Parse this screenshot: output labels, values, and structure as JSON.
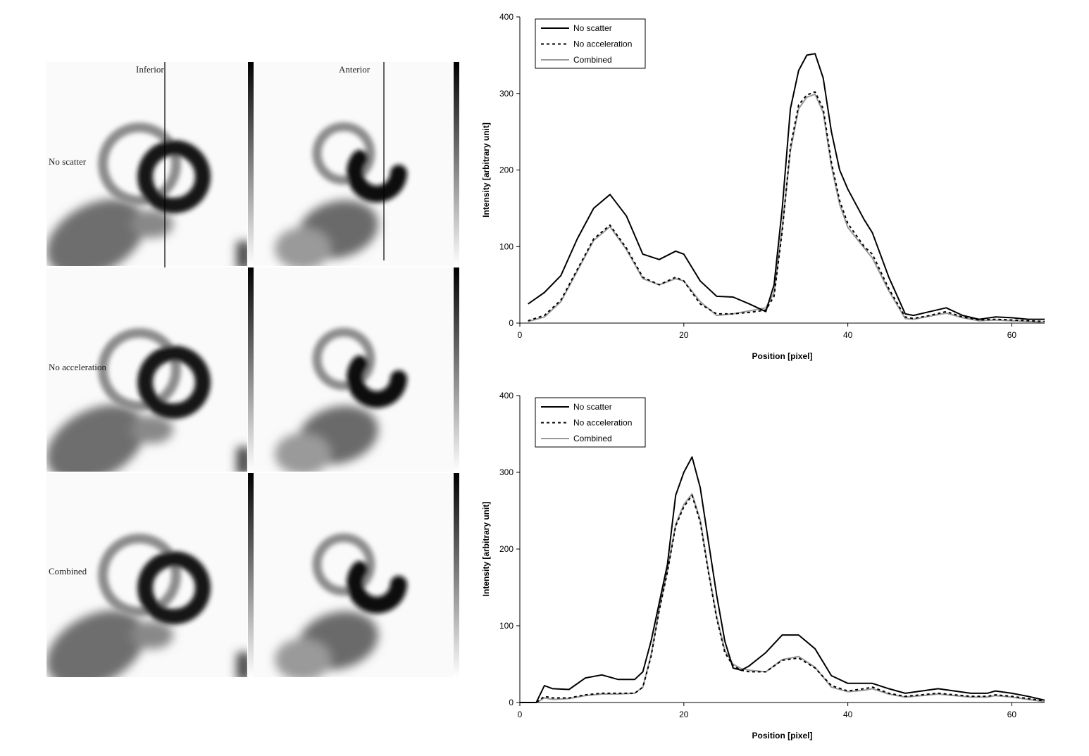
{
  "panel_labels": {
    "columns": [
      "Inferior",
      "Anterior"
    ],
    "rows": [
      "No scatter",
      "No acceleration",
      "Combined"
    ]
  },
  "colors": {
    "no_scatter": "#000000",
    "no_acceleration": "#000000",
    "combined": "#999999"
  },
  "chart_data": [
    {
      "type": "line",
      "xlabel": "Position [pixel]",
      "ylabel": "Intensity [arbitrary unit]",
      "xlim": [
        0,
        64
      ],
      "ylim": [
        0,
        400
      ],
      "xticks": [
        0,
        20,
        40,
        60
      ],
      "yticks": [
        0,
        100,
        200,
        300,
        400
      ],
      "grid": false,
      "legend_position": "top-left",
      "series": [
        {
          "name": "No scatter",
          "style": "solid",
          "x": [
            1,
            3,
            5,
            7,
            9,
            11,
            13,
            15,
            17,
            19,
            20,
            22,
            24,
            26,
            28,
            30,
            31,
            32,
            33,
            34,
            35,
            36,
            37,
            38,
            39,
            40,
            42,
            43,
            45,
            47,
            48,
            50,
            52,
            54,
            56,
            58,
            60,
            62,
            64
          ],
          "y": [
            25,
            40,
            62,
            110,
            150,
            168,
            140,
            90,
            83,
            94,
            90,
            55,
            35,
            34,
            25,
            15,
            50,
            150,
            280,
            330,
            350,
            352,
            320,
            250,
            200,
            175,
            135,
            118,
            60,
            12,
            10,
            15,
            20,
            10,
            5,
            8,
            7,
            5,
            5
          ]
        },
        {
          "name": "No acceleration",
          "style": "dashed",
          "x": [
            1,
            3,
            5,
            7,
            9,
            11,
            13,
            15,
            17,
            19,
            20,
            22,
            24,
            26,
            28,
            30,
            31,
            32,
            33,
            34,
            35,
            36,
            37,
            38,
            39,
            40,
            42,
            43,
            45,
            47,
            48,
            50,
            52,
            54,
            56,
            58,
            60,
            62,
            64
          ],
          "y": [
            3,
            10,
            30,
            70,
            110,
            128,
            98,
            60,
            50,
            60,
            55,
            25,
            12,
            12,
            14,
            17,
            35,
            120,
            230,
            285,
            298,
            302,
            280,
            210,
            160,
            130,
            100,
            90,
            45,
            8,
            6,
            10,
            15,
            8,
            4,
            5,
            4,
            3,
            2
          ]
        },
        {
          "name": "Combined",
          "style": "solid",
          "x": [
            1,
            3,
            5,
            7,
            9,
            11,
            13,
            15,
            17,
            19,
            20,
            22,
            24,
            26,
            28,
            30,
            31,
            32,
            33,
            34,
            35,
            36,
            37,
            38,
            39,
            40,
            42,
            43,
            45,
            47,
            48,
            50,
            52,
            54,
            56,
            58,
            60,
            62,
            64
          ],
          "y": [
            2,
            8,
            28,
            68,
            108,
            126,
            96,
            58,
            50,
            58,
            55,
            28,
            10,
            12,
            16,
            20,
            40,
            125,
            225,
            280,
            295,
            299,
            275,
            205,
            155,
            125,
            98,
            85,
            42,
            6,
            5,
            9,
            13,
            7,
            3,
            4,
            3,
            2,
            1
          ]
        }
      ]
    },
    {
      "type": "line",
      "xlabel": "Position [pixel]",
      "ylabel": "Intensity [arbitrary unit]",
      "xlim": [
        0,
        64
      ],
      "ylim": [
        0,
        400
      ],
      "xticks": [
        0,
        20,
        40,
        60
      ],
      "yticks": [
        0,
        100,
        200,
        300,
        400
      ],
      "grid": false,
      "legend_position": "top-left",
      "series": [
        {
          "name": "No scatter",
          "style": "solid",
          "x": [
            0,
            2,
            3,
            4,
            6,
            8,
            10,
            12,
            14,
            15,
            16,
            17,
            18,
            19,
            20,
            21,
            22,
            23,
            24,
            25,
            26,
            27,
            28,
            30,
            32,
            34,
            36,
            38,
            40,
            42,
            43,
            45,
            47,
            49,
            51,
            53,
            55,
            57,
            58,
            60,
            62,
            64
          ],
          "y": [
            0,
            0,
            22,
            18,
            17,
            32,
            36,
            30,
            30,
            40,
            80,
            130,
            180,
            270,
            300,
            320,
            280,
            210,
            140,
            80,
            45,
            42,
            48,
            65,
            88,
            88,
            70,
            35,
            25,
            25,
            25,
            18,
            12,
            15,
            18,
            15,
            12,
            12,
            15,
            12,
            8,
            3
          ]
        },
        {
          "name": "No acceleration",
          "style": "dashed",
          "x": [
            0,
            2,
            3,
            4,
            6,
            8,
            10,
            12,
            14,
            15,
            16,
            17,
            18,
            19,
            20,
            21,
            22,
            23,
            24,
            25,
            26,
            27,
            28,
            30,
            32,
            34,
            36,
            38,
            40,
            42,
            43,
            45,
            47,
            49,
            51,
            53,
            55,
            57,
            58,
            60,
            62,
            64
          ],
          "y": [
            0,
            0,
            8,
            6,
            6,
            10,
            12,
            12,
            12,
            20,
            60,
            120,
            170,
            230,
            255,
            270,
            235,
            170,
            110,
            65,
            48,
            42,
            40,
            40,
            55,
            58,
            45,
            22,
            15,
            18,
            20,
            12,
            8,
            10,
            12,
            10,
            8,
            8,
            10,
            8,
            5,
            2
          ]
        },
        {
          "name": "Combined",
          "style": "solid",
          "x": [
            0,
            2,
            3,
            4,
            6,
            8,
            10,
            12,
            14,
            15,
            16,
            17,
            18,
            19,
            20,
            21,
            22,
            23,
            24,
            25,
            26,
            27,
            28,
            30,
            32,
            34,
            36,
            38,
            40,
            42,
            43,
            45,
            47,
            49,
            51,
            53,
            55,
            57,
            58,
            60,
            62,
            64
          ],
          "y": [
            0,
            0,
            6,
            4,
            5,
            9,
            11,
            11,
            12,
            20,
            62,
            122,
            172,
            232,
            258,
            272,
            238,
            172,
            112,
            68,
            50,
            44,
            42,
            40,
            56,
            60,
            46,
            20,
            14,
            16,
            18,
            11,
            7,
            9,
            11,
            9,
            7,
            7,
            9,
            7,
            4,
            1
          ]
        }
      ]
    }
  ]
}
